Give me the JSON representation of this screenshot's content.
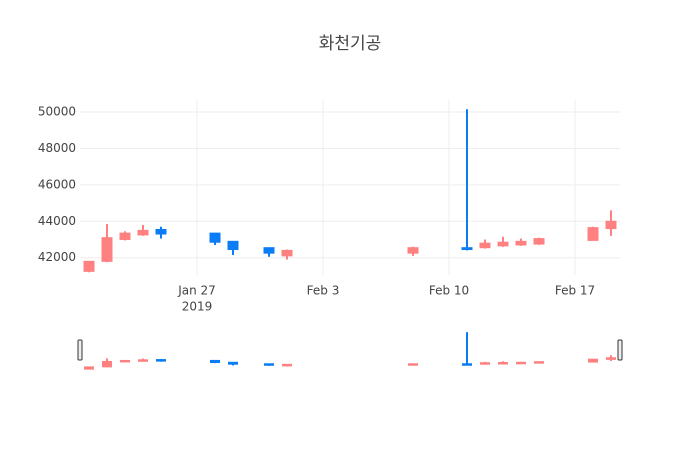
{
  "chart_data": {
    "type": "candlestick",
    "title": "화천기공",
    "x": [
      "2019-01-21",
      "2019-01-22",
      "2019-01-23",
      "2019-01-24",
      "2019-01-25",
      "2019-01-28",
      "2019-01-29",
      "2019-01-31",
      "2019-02-01",
      "2019-02-08",
      "2019-02-11",
      "2019-02-12",
      "2019-02-13",
      "2019-02-14",
      "2019-02-15",
      "2019-02-18",
      "2019-02-19"
    ],
    "open": [
      41250,
      41800,
      43000,
      43250,
      43550,
      43350,
      42900,
      42550,
      42100,
      42250,
      42550,
      42550,
      42650,
      42700,
      42750,
      42950,
      43600
    ],
    "high": [
      41800,
      43850,
      43450,
      43800,
      43700,
      43350,
      42900,
      42550,
      42450,
      42600,
      50150,
      43000,
      43150,
      43050,
      43100,
      43700,
      44600
    ],
    "low": [
      41200,
      41750,
      42950,
      43200,
      43050,
      42700,
      42150,
      42050,
      41900,
      42100,
      42400,
      42500,
      42600,
      42650,
      42700,
      42950,
      43200
    ],
    "close": [
      41800,
      43100,
      43350,
      43500,
      43300,
      42850,
      42450,
      42250,
      42400,
      42550,
      42450,
      42800,
      42850,
      42900,
      43050,
      43650,
      44000
    ],
    "increasing_color": "#ff8080",
    "decreasing_color": "#0a7cf5",
    "xlim": [
      "2019-01-20T12:00",
      "2019-02-19T12:00"
    ],
    "xticks": [
      {
        "value": "2019-01-27",
        "label": "Jan 27"
      },
      {
        "value": "2019-02-03",
        "label": "Feb 3"
      },
      {
        "value": "2019-02-10",
        "label": "Feb 10"
      },
      {
        "value": "2019-02-17",
        "label": "Feb 17"
      }
    ],
    "x_year_label": "2019",
    "ylim": [
      41050,
      50660
    ],
    "yticks": [
      42000,
      44000,
      46000,
      48000,
      50000
    ],
    "grid": true,
    "range_slider": true
  }
}
